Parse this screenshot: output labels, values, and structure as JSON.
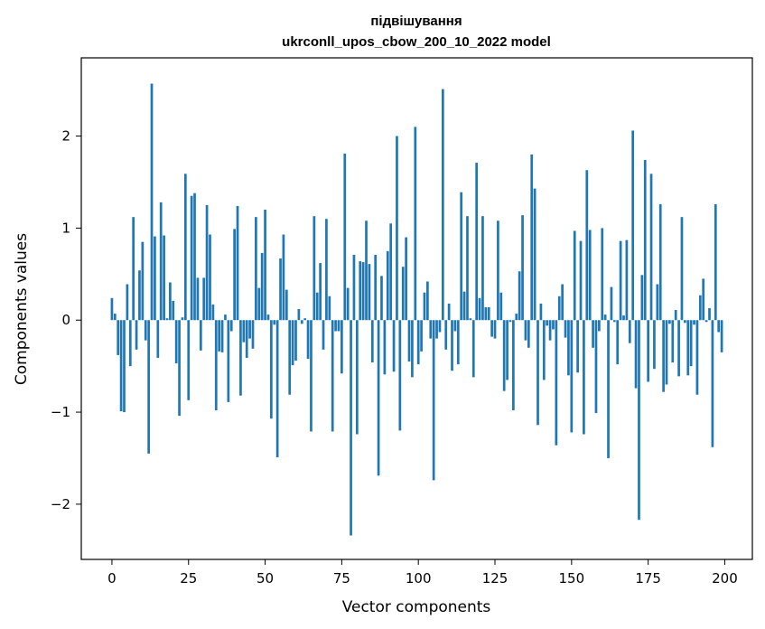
{
  "chart_data": {
    "type": "bar",
    "title": "підвішування",
    "subtitle": "ukrconll_upos_cbow_200_10_2022 model",
    "xlabel": "Vector components",
    "ylabel": "Components values",
    "xlim": [
      -10,
      209
    ],
    "ylim": [
      -2.6,
      2.85
    ],
    "xticks": [
      0,
      25,
      50,
      75,
      100,
      125,
      150,
      175,
      200
    ],
    "yticks": [
      -2,
      -1,
      0,
      1,
      2
    ],
    "ytick_labels": [
      "−2",
      "−1",
      "0",
      "1",
      "2"
    ],
    "bar_color": "#1f77b4",
    "grid": false,
    "x": [
      0,
      1,
      2,
      3,
      4,
      5,
      6,
      7,
      8,
      9,
      10,
      11,
      12,
      13,
      14,
      15,
      16,
      17,
      18,
      19,
      20,
      21,
      22,
      23,
      24,
      25,
      26,
      27,
      28,
      29,
      30,
      31,
      32,
      33,
      34,
      35,
      36,
      37,
      38,
      39,
      40,
      41,
      42,
      43,
      44,
      45,
      46,
      47,
      48,
      49,
      50,
      51,
      52,
      53,
      54,
      55,
      56,
      57,
      58,
      59,
      60,
      61,
      62,
      63,
      64,
      65,
      66,
      67,
      68,
      69,
      70,
      71,
      72,
      73,
      74,
      75,
      76,
      77,
      78,
      79,
      80,
      81,
      82,
      83,
      84,
      85,
      86,
      87,
      88,
      89,
      90,
      91,
      92,
      93,
      94,
      95,
      96,
      97,
      98,
      99,
      100,
      101,
      102,
      103,
      104,
      105,
      106,
      107,
      108,
      109,
      110,
      111,
      112,
      113,
      114,
      115,
      116,
      117,
      118,
      119,
      120,
      121,
      122,
      123,
      124,
      125,
      126,
      127,
      128,
      129,
      130,
      131,
      132,
      133,
      134,
      135,
      136,
      137,
      138,
      139,
      140,
      141,
      142,
      143,
      144,
      145,
      146,
      147,
      148,
      149,
      150,
      151,
      152,
      153,
      154,
      155,
      156,
      157,
      158,
      159,
      160,
      161,
      162,
      163,
      164,
      165,
      166,
      167,
      168,
      169,
      170,
      171,
      172,
      173,
      174,
      175,
      176,
      177,
      178,
      179,
      180,
      181,
      182,
      183,
      184,
      185,
      186,
      187,
      188,
      189,
      190,
      191,
      192,
      193,
      194,
      195,
      196,
      197,
      198,
      199
    ],
    "values": [
      0.24,
      0.07,
      -0.38,
      -0.99,
      -1.0,
      0.39,
      -0.5,
      1.12,
      -0.32,
      0.54,
      0.85,
      -0.22,
      -1.45,
      2.57,
      0.91,
      -0.41,
      1.28,
      0.92,
      0.02,
      0.41,
      0.21,
      -0.47,
      -1.04,
      0.03,
      1.59,
      -0.87,
      1.35,
      1.38,
      0.46,
      -0.33,
      0.46,
      1.25,
      0.93,
      0.17,
      -0.98,
      -0.34,
      -0.35,
      0.06,
      -0.89,
      -0.12,
      0.99,
      1.24,
      -0.82,
      -0.24,
      -0.41,
      -0.2,
      -0.31,
      1.12,
      0.35,
      0.73,
      1.2,
      0.06,
      -1.07,
      -0.05,
      -1.49,
      0.67,
      0.93,
      0.33,
      -0.81,
      -0.49,
      -0.44,
      0.12,
      -0.04,
      0.02,
      -0.42,
      -1.21,
      1.13,
      0.3,
      0.62,
      -0.32,
      1.1,
      0.26,
      -1.21,
      -0.12,
      -0.12,
      -0.58,
      1.81,
      0.35,
      -2.34,
      0.71,
      -1.24,
      0.64,
      0.63,
      1.08,
      0.61,
      -0.46,
      0.71,
      -1.69,
      0.48,
      -0.59,
      0.75,
      1.05,
      -0.56,
      2.0,
      -1.2,
      0.58,
      0.9,
      -0.45,
      -0.62,
      2.1,
      -0.48,
      -0.34,
      0.3,
      0.42,
      -0.2,
      -1.74,
      -0.2,
      -0.13,
      2.51,
      -0.32,
      0.18,
      -0.55,
      -0.12,
      -0.48,
      1.39,
      0.31,
      1.13,
      0.02,
      -0.62,
      1.71,
      0.24,
      1.13,
      0.14,
      0.14,
      -0.18,
      -0.2,
      1.08,
      0.3,
      -0.77,
      -0.65,
      -0.02,
      -0.98,
      0.07,
      0.53,
      1.14,
      -0.22,
      -0.3,
      1.8,
      1.43,
      -1.14,
      0.18,
      -0.65,
      -0.06,
      -0.22,
      -0.1,
      -1.36,
      0.26,
      0.39,
      -0.19,
      -0.6,
      -1.22,
      0.97,
      -0.57,
      0.86,
      -1.24,
      1.63,
      0.98,
      -0.3,
      -1.01,
      -0.12,
      1.0,
      0.06,
      -1.5,
      0.36,
      -0.02,
      -0.48,
      0.86,
      0.05,
      0.87,
      -0.25,
      2.06,
      -0.74,
      -2.17,
      0.49,
      1.74,
      -0.67,
      1.59,
      -0.53,
      0.39,
      1.26,
      -0.78,
      -0.7,
      -0.04,
      -0.46,
      0.11,
      -0.61,
      1.12,
      -0.03,
      -0.6,
      -0.5,
      -0.05,
      -0.81,
      0.27,
      0.45,
      -0.02,
      0.13,
      -1.38,
      1.26,
      -0.13,
      -0.35
    ]
  }
}
